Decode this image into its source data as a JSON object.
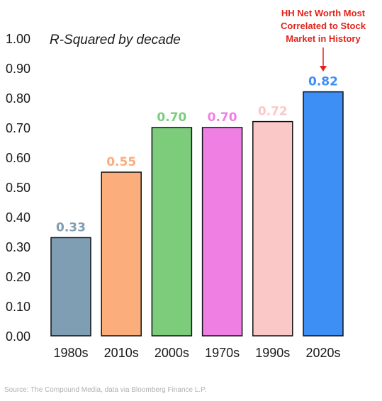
{
  "chart_data": {
    "type": "bar",
    "title": "R-Squared by decade",
    "categories": [
      "1980s",
      "2010s",
      "2000s",
      "1970s",
      "1990s",
      "2020s"
    ],
    "values": [
      0.33,
      0.55,
      0.7,
      0.7,
      0.72,
      0.82
    ],
    "data_labels": [
      "0.33",
      "0.55",
      "0.70",
      "0.70",
      "0.72",
      "0.82"
    ],
    "colors": [
      "#7f9db3",
      "#fbad7c",
      "#7ccc7c",
      "#f07fe4",
      "#fbc8c8",
      "#3d8ef5"
    ],
    "label_colors": [
      "#7f9db3",
      "#fbad7c",
      "#7ccc7c",
      "#f07fe4",
      "#fbc8c8",
      "#3d8ef5"
    ],
    "ylim": [
      0,
      1
    ],
    "yticks": [
      "0.00",
      "0.10",
      "0.20",
      "0.30",
      "0.40",
      "0.50",
      "0.60",
      "0.70",
      "0.80",
      "0.90",
      "1.00"
    ],
    "xlabel": "",
    "ylabel": "",
    "grid": false,
    "legend": "none",
    "annotation": {
      "lines": [
        "HH Net Worth Most",
        "Correlated to Stock",
        "Market in History"
      ],
      "target_category": "2020s",
      "color": "#e2231a"
    }
  },
  "source": "Source: The Compound Media, data via Bloomberg Finance L.P."
}
